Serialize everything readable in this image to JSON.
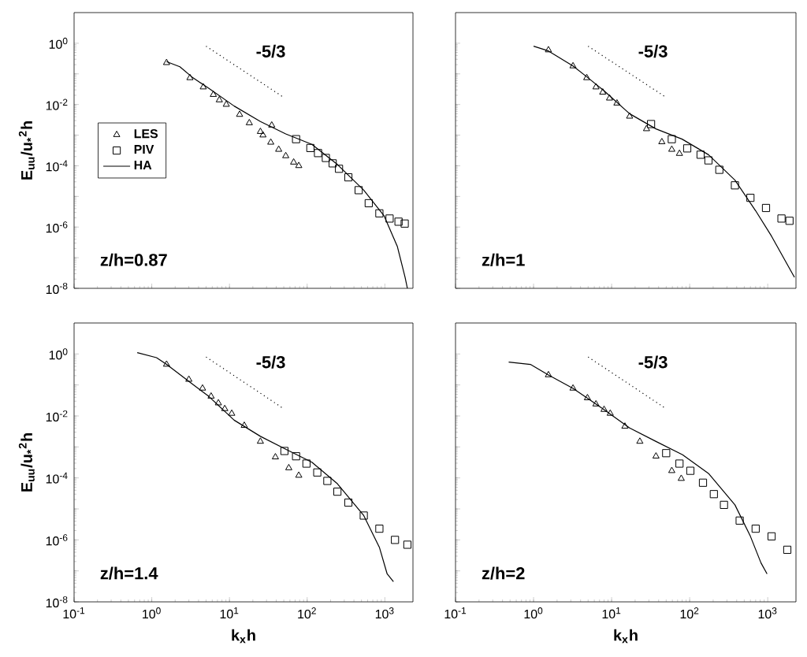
{
  "chart_data": [
    {
      "type": "line",
      "log": "xy",
      "xlim": [
        0.1,
        2300
      ],
      "ylim": [
        1e-08,
        10
      ],
      "tick_labels": "y",
      "legend": "left",
      "ylabel": "E$_{uu}$/u$_{*}$$^{2}$h",
      "xticks": [
        {
          "value": 0.1,
          "label": null
        },
        {
          "value": 1,
          "label": null
        },
        {
          "value": 10,
          "label": null
        },
        {
          "value": 100,
          "label": null
        },
        {
          "value": 1000,
          "label": null
        }
      ],
      "yticks": [
        {
          "value": 1e-08,
          "label": "10$^{-8}$"
        },
        {
          "value": 1e-07,
          "label": null
        },
        {
          "value": 1e-06,
          "label": "10$^{-6}$"
        },
        {
          "value": 1e-05,
          "label": null
        },
        {
          "value": 0.0001,
          "label": "10$^{-4}$"
        },
        {
          "value": 0.001,
          "label": null
        },
        {
          "value": 0.01,
          "label": "10$^{-2}$"
        },
        {
          "value": 0.1,
          "label": null
        },
        {
          "value": 1,
          "label": "10$^{0}$"
        }
      ],
      "annotations": [
        "z/h=0.87",
        "-5/3"
      ],
      "series": [
        {
          "name": "LES",
          "type": "scatter",
          "marker": "triangle",
          "color": "#000000",
          "x": [
            1.55,
            3.1,
            4.6,
            6.2,
            7.4,
            9.1,
            13.5,
            18,
            25,
            27,
            34,
            35,
            43,
            53,
            67,
            78
          ],
          "values": [
            0.23,
            0.074,
            0.037,
            0.021,
            0.014,
            0.01,
            0.0047,
            0.0025,
            0.0013,
            0.001,
            0.00058,
            0.0021,
            0.00034,
            0.00021,
            0.00013,
            0.0001
          ]
        },
        {
          "name": "PIV",
          "type": "scatter",
          "marker": "square",
          "color": "#000000",
          "x": [
            72,
            110,
            138,
            174,
            213,
            257,
            339,
            460,
            620,
            850,
            1150,
            1500,
            1800
          ],
          "values": [
            0.00074,
            0.00038,
            0.00026,
            0.00018,
            0.00012,
            8e-05,
            4.2e-05,
            1.6e-05,
            6e-06,
            2.8e-06,
            1.9e-06,
            1.5e-06,
            1.3e-06
          ]
        },
        {
          "name": "HA",
          "marker": "none",
          "line_style": "solid",
          "color": "#000000",
          "x": [
            1.55,
            2.3,
            3.4,
            5.4,
            11.5,
            25,
            53,
            115,
            245,
            535,
            980,
            1450,
            1820,
            1950
          ],
          "values": [
            0.25,
            0.17,
            0.074,
            0.034,
            0.0089,
            0.0028,
            0.0011,
            0.0005,
            0.00011,
            1.6e-05,
            2.3e-06,
            2.3e-07,
            2.3e-08,
            1e-08
          ]
        },
        {
          "marker": "none",
          "line_style": "dotted",
          "color": "#000000",
          "x": [
            5,
            50
          ],
          "values": [
            0.8,
            0.017
          ]
        }
      ]
    },
    {
      "type": "line",
      "log": "xy",
      "xlim": [
        0.1,
        2300
      ],
      "ylim": [
        1e-08,
        10
      ],
      "tick_labels": false,
      "xticks": [
        {
          "value": 0.1,
          "label": null
        },
        {
          "value": 1,
          "label": null
        },
        {
          "value": 10,
          "label": null
        },
        {
          "value": 100,
          "label": null
        },
        {
          "value": 1000,
          "label": null
        }
      ],
      "yticks": [
        {
          "value": 1e-08,
          "label": null
        },
        {
          "value": 1e-07,
          "label": null
        },
        {
          "value": 1e-06,
          "label": null
        },
        {
          "value": 1e-05,
          "label": null
        },
        {
          "value": 0.0001,
          "label": null
        },
        {
          "value": 0.001,
          "label": null
        },
        {
          "value": 0.01,
          "label": null
        },
        {
          "value": 0.1,
          "label": null
        },
        {
          "value": 1,
          "label": null
        }
      ],
      "annotations": [
        "z/h=1",
        "-5/3"
      ],
      "series": [
        {
          "type": "scatter",
          "marker": "triangle",
          "color": "#000000",
          "x": [
            1.55,
            3.2,
            4.8,
            6.3,
            7.7,
            9.4,
            11.7,
            17,
            28,
            44,
            59,
            74
          ],
          "values": [
            0.6,
            0.18,
            0.074,
            0.037,
            0.025,
            0.016,
            0.011,
            0.0041,
            0.0016,
            0.0006,
            0.00034,
            0.00025
          ]
        },
        {
          "type": "scatter",
          "marker": "square",
          "color": "#000000",
          "x": [
            32,
            59,
            93,
            138,
            174,
            240,
            380,
            600,
            950,
            1500,
            1900
          ],
          "values": [
            0.0023,
            0.00074,
            0.00037,
            0.00023,
            0.00015,
            7.4e-05,
            2.3e-05,
            9e-06,
            4.2e-06,
            1.9e-06,
            1.6e-06
          ]
        },
        {
          "marker": "none",
          "line_style": "solid",
          "color": "#000000",
          "x": [
            1.0,
            1.55,
            3.2,
            5,
            8,
            17,
            37,
            80,
            174,
            380,
            700,
            1120,
            2200
          ],
          "values": [
            0.8,
            0.56,
            0.18,
            0.074,
            0.028,
            0.005,
            0.0016,
            0.00074,
            0.00023,
            3.4e-05,
            3.4e-06,
            5e-07,
            2.3e-08
          ]
        },
        {
          "marker": "none",
          "line_style": "dotted",
          "color": "#000000",
          "x": [
            5,
            50
          ],
          "values": [
            0.8,
            0.017
          ]
        }
      ]
    },
    {
      "type": "line",
      "log": "xy",
      "xlim": [
        0.1,
        2300
      ],
      "ylim": [
        1e-08,
        10
      ],
      "ylabel": "E$_{uu}$/u$_{*}$$^{2}$h",
      "xlabel": "k$_{x}$h",
      "xticks": [
        {
          "value": 0.1,
          "label": "10$^{-1}$"
        },
        {
          "value": 1,
          "label": "10$^{0}$"
        },
        {
          "value": 10,
          "label": "10$^{1}$"
        },
        {
          "value": 100,
          "label": "10$^{2}$"
        },
        {
          "value": 1000,
          "label": "10$^{3}$"
        }
      ],
      "yticks": [
        {
          "value": 1e-08,
          "label": "10$^{-8}$"
        },
        {
          "value": 1e-07,
          "label": null
        },
        {
          "value": 1e-06,
          "label": "10$^{-6}$"
        },
        {
          "value": 1e-05,
          "label": null
        },
        {
          "value": 0.0001,
          "label": "10$^{-4}$"
        },
        {
          "value": 0.001,
          "label": null
        },
        {
          "value": 0.01,
          "label": "10$^{-2}$"
        },
        {
          "value": 0.1,
          "label": null
        },
        {
          "value": 1,
          "label": "10$^{0}$"
        }
      ],
      "annotations": [
        "z/h=1.4",
        "-5/3"
      ],
      "series": [
        {
          "type": "scatter",
          "marker": "triangle",
          "color": "#000000",
          "x": [
            1.55,
            3,
            4.5,
            5.8,
            7.2,
            8.7,
            10.7,
            15.5,
            25,
            39,
            58,
            78
          ],
          "values": [
            0.46,
            0.15,
            0.078,
            0.043,
            0.026,
            0.017,
            0.012,
            0.0049,
            0.0015,
            0.00047,
            0.00021,
            0.00012
          ]
        },
        {
          "type": "scatter",
          "marker": "square",
          "color": "#000000",
          "x": [
            51,
            72,
            98,
            135,
            182,
            245,
            339,
            535,
            850,
            1350,
            1950
          ],
          "values": [
            0.00074,
            0.0005,
            0.00029,
            0.00015,
            8e-05,
            3.6e-05,
            1.6e-05,
            6.1e-06,
            2.3e-06,
            1e-06,
            7e-07
          ]
        },
        {
          "marker": "none",
          "line_style": "solid",
          "color": "#000000",
          "x": [
            0.65,
            1.15,
            1.55,
            2.9,
            5.4,
            11.5,
            25,
            53,
            115,
            245,
            535,
            850,
            1070,
            1290
          ],
          "values": [
            1.1,
            0.76,
            0.46,
            0.14,
            0.043,
            0.0073,
            0.0022,
            0.00084,
            0.00032,
            6.5e-05,
            6.1e-06,
            5.8e-07,
            8e-08,
            4.5e-08
          ]
        },
        {
          "marker": "none",
          "line_style": "dotted",
          "color": "#000000",
          "x": [
            5,
            50
          ],
          "values": [
            0.8,
            0.017
          ]
        }
      ]
    },
    {
      "type": "line",
      "log": "xy",
      "xlim": [
        0.1,
        2300
      ],
      "ylim": [
        1e-08,
        10
      ],
      "tick_labels": "x",
      "xlabel": "k$_{x}$h",
      "xticks": [
        {
          "value": 0.1,
          "label": "10$^{-1}$"
        },
        {
          "value": 1,
          "label": "10$^{0}$"
        },
        {
          "value": 10,
          "label": "10$^{1}$"
        },
        {
          "value": 100,
          "label": "10$^{2}$"
        },
        {
          "value": 1000,
          "label": "10$^{3}$"
        }
      ],
      "yticks": [
        {
          "value": 1e-08,
          "label": null
        },
        {
          "value": 1e-07,
          "label": null
        },
        {
          "value": 1e-06,
          "label": null
        },
        {
          "value": 1e-05,
          "label": null
        },
        {
          "value": 0.0001,
          "label": null
        },
        {
          "value": 0.001,
          "label": null
        },
        {
          "value": 0.01,
          "label": null
        },
        {
          "value": 0.1,
          "label": null
        },
        {
          "value": 1,
          "label": null
        }
      ],
      "annotations": [
        "z/h=2",
        "-5/3"
      ],
      "series": [
        {
          "type": "scatter",
          "marker": "triangle",
          "color": "#000000",
          "x": [
            1.55,
            3.2,
            4.9,
            6.3,
            8,
            9.6,
            14.8,
            23,
            37,
            59,
            78
          ],
          "values": [
            0.21,
            0.078,
            0.038,
            0.024,
            0.016,
            0.012,
            0.0046,
            0.0015,
            0.0005,
            0.00017,
            9.5e-05
          ]
        },
        {
          "type": "scatter",
          "marker": "square",
          "color": "#000000",
          "x": [
            50,
            74,
            102,
            148,
            204,
            275,
            437,
            700,
            1120,
            1780
          ],
          "values": [
            0.00063,
            0.00029,
            0.00017,
            7e-05,
            3e-05,
            1.35e-05,
            4.2e-06,
            2.3e-06,
            1.3e-06,
            4.8e-07
          ]
        },
        {
          "marker": "none",
          "line_style": "solid",
          "color": "#000000",
          "x": [
            0.48,
            0.91,
            1.55,
            3.2,
            8,
            17,
            37,
            81,
            174,
            380,
            600,
            820,
            980
          ],
          "values": [
            0.55,
            0.46,
            0.21,
            0.078,
            0.016,
            0.0041,
            0.0015,
            0.00056,
            0.00014,
            1.35e-05,
            1.3e-06,
            1.8e-07,
            8e-08
          ]
        },
        {
          "marker": "none",
          "line_style": "dotted",
          "color": "#000000",
          "x": [
            5,
            50
          ],
          "values": [
            0.8,
            0.017
          ]
        }
      ]
    }
  ]
}
